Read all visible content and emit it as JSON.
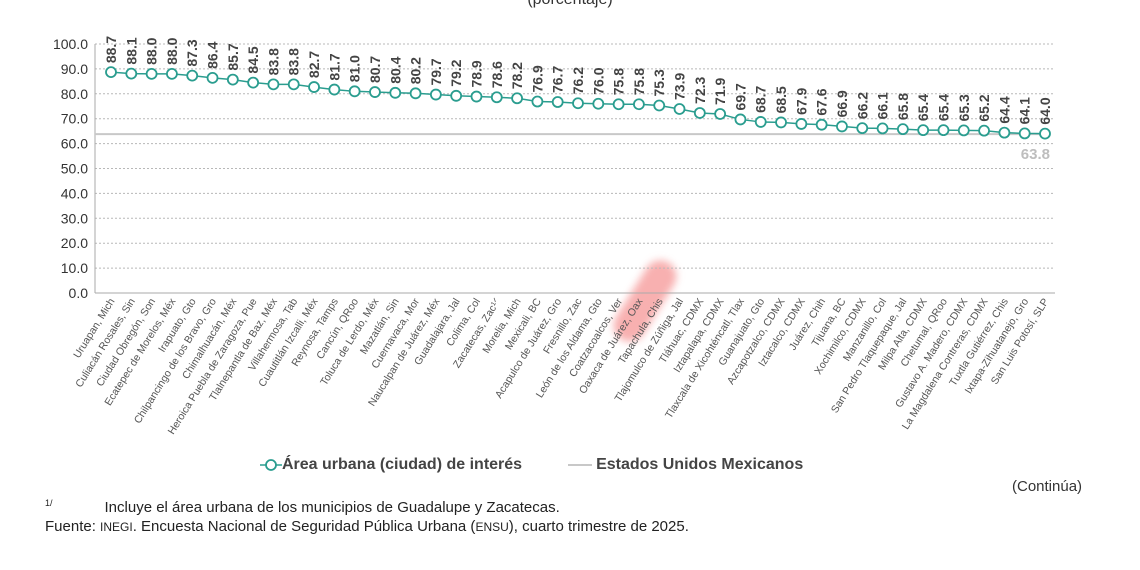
{
  "chart_data": {
    "type": "line",
    "subtitle": "(porcentaje)",
    "ylim": [
      0,
      100
    ],
    "yticks": [
      "0.0",
      "10.0",
      "20.0",
      "30.0",
      "40.0",
      "50.0",
      "60.0",
      "70.0",
      "80.0",
      "90.0",
      "100.0"
    ],
    "grid": true,
    "legend_position": "bottom",
    "categories": [
      "Uruapan, Mich",
      "Culiacán Rosales, Sin",
      "Ciudad Obregón, Son",
      "Ecatepec de Morelos, Méx",
      "Irapuato, Gto",
      "Chilpancingo de los Bravo, Gro",
      "Chimalhuacán, Méx",
      "Heroica Puebla de Zaragoza, Pue",
      "Tlalnepantla de Baz, Méx",
      "Villahermosa, Tab",
      "Cuautitlán Izcalli, Méx",
      "Reynosa, Tamps",
      "Cancún, QRoo",
      "Toluca de Lerdo, Méx",
      "Mazatlán, Sin",
      "Cuernavaca, Mor",
      "Naucalpan de Juárez, Méx",
      "Guadalajara, Jal",
      "Colima, Col",
      "Zacatecas, Zac¹ᐟ",
      "Morelia, Mich",
      "Mexicali, BC",
      "Acapulco de Juárez, Gro",
      "Fresnillo, Zac",
      "León de los Aldama, Gto",
      "Coatzacoalcos, Ver",
      "Oaxaca de Juárez, Oax",
      "Tapachula, Chis",
      "Tlajomulco de Zúñiga, Jal",
      "Tláhuac, CDMX",
      "Iztapalapa, CDMX",
      "Tlaxcala de Xicohténcatl, Tlax",
      "Guanajuato, Gto",
      "Azcapotzalco, CDMX",
      "Iztacalco, CDMX",
      "Juárez, Chih",
      "Tijuana, BC",
      "Xochimilco, CDMX",
      "Manzanillo, Col",
      "San Pedro Tlaquepaque, Jal",
      "Milpa Alta, CDMX",
      "Chetumal, QRoo",
      "Gustavo A. Madero, CDMX",
      "La Magdalena Contreras, CDMX",
      "Tuxtla Gutiérrez, Chis",
      "Ixtapa-Zihuatanejo, Gro",
      "San Luis Potosí, SLP"
    ],
    "series": [
      {
        "name": "Área urbana (ciudad) de interés",
        "color": "#2a9d8f",
        "values": [
          88.7,
          88.1,
          88.0,
          88.0,
          87.3,
          86.4,
          85.7,
          84.5,
          83.8,
          83.8,
          82.7,
          81.7,
          81.0,
          80.7,
          80.4,
          80.2,
          79.7,
          79.2,
          78.9,
          78.6,
          78.2,
          76.9,
          76.7,
          76.2,
          76.0,
          75.8,
          75.8,
          75.3,
          73.9,
          72.3,
          71.9,
          69.7,
          68.7,
          68.5,
          67.9,
          67.6,
          66.9,
          66.2,
          66.1,
          65.8,
          65.4,
          65.4,
          65.3,
          65.2,
          64.4,
          64.1,
          64.0
        ]
      },
      {
        "name": "Estados Unidos Mexicanos",
        "color": "#c8c8c8",
        "value": 63.8,
        "label": "63.8"
      }
    ]
  },
  "continua": "(Continúa)",
  "notes": {
    "footnote_mark": "1/",
    "footnote_text": "Incluye el área urbana de los municipios de Guadalupe y Zacatecas.",
    "source_label": "Fuente: ",
    "source_org": "INEGI",
    "source_text_1": ". Encuesta Nacional de Seguridad Pública Urbana (",
    "source_abbr": "ENSU",
    "source_text_2": "), cuarto trimestre de 2025."
  }
}
